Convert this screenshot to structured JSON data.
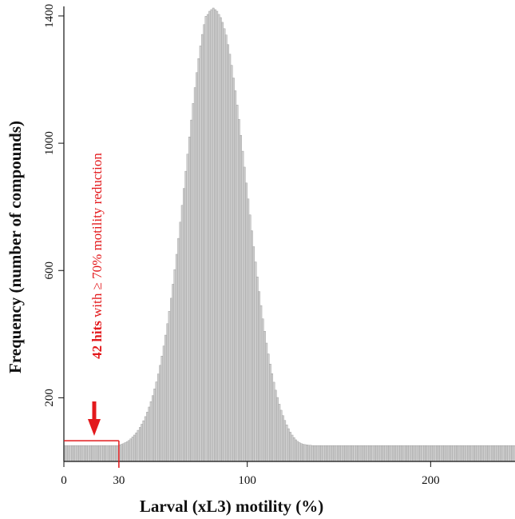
{
  "chart_data": {
    "type": "bar",
    "title": "",
    "xlabel": "Larval (xL3) motility (%)",
    "ylabel": "Frequency (number of compounds)",
    "xlim": [
      0,
      246
    ],
    "ylim": [
      0,
      1430
    ],
    "x_ticks": [
      0,
      30,
      100,
      200
    ],
    "y_ticks": [
      200,
      600,
      1000,
      1400
    ],
    "bin_width": 1,
    "bins": {
      "start": 0,
      "values": [
        50,
        50,
        50,
        50,
        50,
        50,
        50,
        50,
        50,
        50,
        50,
        50,
        50,
        50,
        50,
        50,
        50,
        50,
        50,
        50,
        50,
        50,
        50,
        50,
        50,
        50,
        50,
        50,
        50,
        50,
        52,
        54,
        56,
        59,
        62,
        66,
        71,
        77,
        83,
        90,
        98,
        107,
        117,
        128,
        141,
        155,
        171,
        188,
        207,
        228,
        250,
        275,
        302,
        331,
        363,
        397,
        433,
        472,
        513,
        557,
        603,
        651,
        701,
        752,
        805,
        858,
        912,
        966,
        1020,
        1073,
        1125,
        1175,
        1222,
        1266,
        1306,
        1342,
        1373,
        1399,
        1405,
        1415,
        1420,
        1425,
        1420,
        1415,
        1405,
        1395,
        1380,
        1360,
        1340,
        1310,
        1280,
        1245,
        1205,
        1165,
        1120,
        1075,
        1025,
        975,
        925,
        875,
        825,
        775,
        725,
        675,
        627,
        580,
        534,
        490,
        448,
        409,
        372,
        338,
        306,
        276,
        249,
        224,
        201,
        180,
        161,
        144,
        129,
        115,
        103,
        92,
        83,
        75,
        68,
        63,
        59,
        56,
        54,
        53,
        52,
        51,
        51,
        50,
        50,
        50,
        50,
        50,
        50,
        50,
        50,
        50,
        50,
        50,
        50,
        50,
        50,
        50,
        50,
        50,
        50,
        50,
        50,
        50,
        50,
        50,
        50,
        50,
        50,
        50,
        50,
        50,
        50,
        50,
        50,
        50,
        50,
        50,
        50,
        50,
        50,
        50,
        50,
        50,
        50,
        50,
        50,
        50,
        50,
        50,
        50,
        50,
        50,
        50,
        50,
        50,
        50,
        50,
        50,
        50,
        50,
        50,
        50,
        50,
        50,
        50,
        50,
        50,
        50,
        50,
        50,
        50,
        50,
        50,
        50,
        50,
        50,
        50,
        50,
        50,
        50,
        50,
        50,
        50,
        50,
        50,
        50,
        50,
        50,
        50,
        50,
        50,
        50,
        50,
        50,
        50,
        50,
        50,
        50,
        50,
        50,
        50,
        50,
        50,
        50,
        50,
        50,
        50,
        50,
        50,
        50,
        50,
        50,
        50
      ]
    },
    "threshold_x": 30,
    "annotation": {
      "bold_text": "42 hits",
      "text": " with ≥ 70% motility reduction",
      "color": "#e3191c"
    },
    "colors": {
      "bars": "#cfcfcf",
      "bar_edge": "#8a8a8a",
      "highlight": "#e3191c",
      "axis": "#111111"
    }
  }
}
